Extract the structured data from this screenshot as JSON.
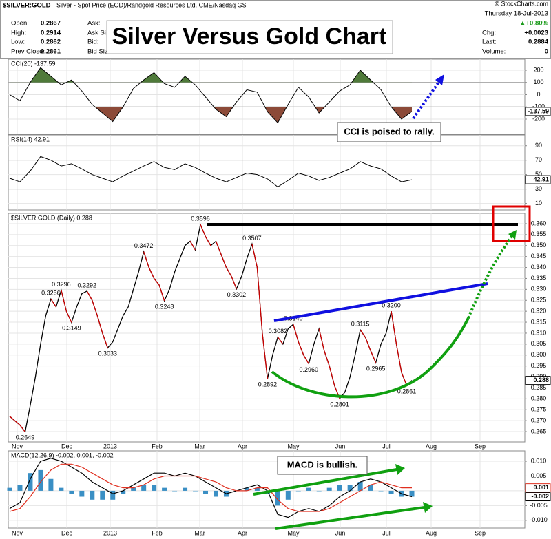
{
  "header": {
    "symbol": "$SILVER:GOLD",
    "description": "Silver - Spot Price (EOD)/Randgold Resources Ltd.  CME/Nasdaq GS",
    "source": "© StockCharts.com",
    "quote": [
      [
        "Open:",
        "0.2867"
      ],
      [
        "High:",
        "0.2914"
      ],
      [
        "Low:",
        "0.2862"
      ],
      [
        "Prev Close:",
        "0.2861"
      ]
    ],
    "book": [
      "Ask:",
      "Ask Si",
      "Bid:",
      "Bid Size"
    ],
    "date": "Thursday  18-Jul-2013",
    "change_pct": "▲+0.80%",
    "chg": [
      "Chg:",
      "+0.0023"
    ],
    "last": [
      "Last:",
      "0.2884"
    ],
    "volume": [
      "Volume:",
      "0"
    ]
  },
  "title": "Silver Versus Gold Chart",
  "annotations": [
    "CCI is poised to rally.",
    "MACD is bullish."
  ],
  "x_labels": [
    "Nov",
    "Dec",
    "2013",
    "Feb",
    "Mar",
    "Apr",
    "May",
    "Jun",
    "Jul",
    "Aug",
    "Sep"
  ],
  "chart_data": [
    {
      "type": "cci",
      "label": "CCI(20) -137.59",
      "color": "#000000",
      "upper_fill": "#4f7a3a",
      "lower_fill": "#8c4a38",
      "bands": [
        100,
        -100
      ],
      "ylim": [
        -324,
        290
      ],
      "yticks": [
        200,
        100,
        0,
        -100,
        -200
      ],
      "values": [
        0,
        -50,
        100,
        220,
        150,
        80,
        120,
        30,
        -80,
        -150,
        -220,
        -100,
        50,
        120,
        180,
        90,
        60,
        150,
        80,
        -20,
        -120,
        -180,
        -60,
        40,
        20,
        -140,
        -230,
        -80,
        60,
        -20,
        -150,
        -60,
        30,
        80,
        200,
        120,
        40,
        -100,
        -200,
        -137.59
      ]
    },
    {
      "type": "rsi",
      "label": "RSI(14) 42.91",
      "color": "#000000",
      "bands": [
        70,
        30
      ],
      "ylim": [
        1,
        105
      ],
      "yticks": [
        90,
        70,
        50,
        30,
        10
      ],
      "values": [
        45,
        40,
        55,
        75,
        70,
        62,
        65,
        58,
        50,
        45,
        40,
        48,
        55,
        62,
        68,
        60,
        57,
        65,
        60,
        52,
        45,
        40,
        46,
        52,
        50,
        44,
        33,
        42,
        52,
        48,
        42,
        46,
        52,
        58,
        68,
        62,
        58,
        48,
        40,
        42.91
      ]
    },
    {
      "type": "price",
      "label": "$SILVER:GOLD (Daily) 0.288",
      "last_label": "0.288",
      "up_color": "#000000",
      "down_color": "#cc0000",
      "grid": true,
      "ylim": [
        0.2603,
        0.3647
      ],
      "yticks": [
        {
          "value": 0.36,
          "label": "0.360"
        },
        {
          "value": 0.355,
          "label": "0.355"
        },
        {
          "value": 0.35,
          "label": "0.350"
        },
        {
          "value": 0.345,
          "label": "0.345"
        },
        {
          "value": 0.34,
          "label": "0.340"
        },
        {
          "value": 0.335,
          "label": "0.335"
        },
        {
          "value": 0.33,
          "label": "0.330"
        },
        {
          "value": 0.325,
          "label": "0.325"
        },
        {
          "value": 0.32,
          "label": "0.320"
        },
        {
          "value": 0.315,
          "label": "0.315"
        },
        {
          "value": 0.31,
          "label": "0.310"
        },
        {
          "value": 0.305,
          "label": "0.305"
        },
        {
          "value": 0.3,
          "label": "0.300"
        },
        {
          "value": 0.295,
          "label": "0.295"
        },
        {
          "value": 0.29,
          "label": "0.290"
        },
        {
          "value": 0.285,
          "label": "0.285"
        },
        {
          "value": 0.28,
          "label": "0.280"
        },
        {
          "value": 0.275,
          "label": "0.275"
        },
        {
          "value": 0.27,
          "label": "0.270"
        },
        {
          "value": 0.265,
          "label": "0.265"
        }
      ],
      "values": [
        0.272,
        0.27,
        0.268,
        0.2649,
        0.277,
        0.29,
        0.305,
        0.318,
        0.3256,
        0.322,
        0.3296,
        0.32,
        0.3149,
        0.322,
        0.328,
        0.3292,
        0.325,
        0.318,
        0.31,
        0.3033,
        0.306,
        0.312,
        0.318,
        0.322,
        0.33,
        0.338,
        0.3472,
        0.34,
        0.335,
        0.332,
        0.3248,
        0.33,
        0.338,
        0.344,
        0.35,
        0.352,
        0.348,
        0.3596,
        0.354,
        0.35,
        0.352,
        0.346,
        0.34,
        0.336,
        0.3302,
        0.336,
        0.344,
        0.3507,
        0.34,
        0.31,
        0.2892,
        0.3,
        0.3082,
        0.305,
        0.312,
        0.314,
        0.306,
        0.3,
        0.296,
        0.305,
        0.312,
        0.302,
        0.295,
        0.286,
        0.2801,
        0.283,
        0.29,
        0.3,
        0.3115,
        0.308,
        0.302,
        0.2965,
        0.305,
        0.31,
        0.32,
        0.305,
        0.292,
        0.2861,
        0.2884
      ],
      "value_labels": [
        null,
        null,
        null,
        "0.2649",
        null,
        null,
        null,
        null,
        "0.3256",
        null,
        "0.3296",
        null,
        "0.3149",
        null,
        null,
        "0.3292",
        null,
        null,
        null,
        "0.3033",
        null,
        null,
        null,
        null,
        null,
        null,
        "0.3472",
        null,
        null,
        null,
        "0.3248",
        null,
        null,
        null,
        null,
        null,
        null,
        "0.3596",
        null,
        null,
        null,
        null,
        null,
        null,
        "0.3302",
        null,
        null,
        "0.3507",
        null,
        null,
        "0.2892",
        null,
        "0.3082",
        null,
        null,
        "0.3140",
        null,
        null,
        "0.2960",
        null,
        null,
        null,
        null,
        null,
        "0.2801",
        null,
        null,
        null,
        "0.3115",
        null,
        null,
        "0.2965",
        null,
        null,
        "0.3200",
        null,
        null,
        "0.2861",
        null
      ]
    },
    {
      "type": "macd",
      "label": "MACD(12,26,9) -0.002, 0.001, -0.002",
      "ylim": [
        -0.0126,
        0.0135
      ],
      "yticks": [
        {
          "value": 0.01,
          "label": "0.010"
        },
        {
          "value": 0.005,
          "label": "0.005"
        },
        {
          "value": 0,
          "label": "0.000"
        },
        {
          "value": -0.005,
          "label": "-0.005"
        },
        {
          "value": -0.01,
          "label": "-0.010"
        }
      ],
      "series": [
        {
          "color": "#3a8fc4",
          "style": "histogram",
          "values": [
            0.001,
            0.002,
            0.006,
            0.007,
            0.004,
            0.001,
            -0.001,
            -0.002,
            -0.003,
            -0.003,
            -0.003,
            -0.001,
            0.001,
            0.002,
            0.002,
            0.001,
            0,
            0.001,
            0,
            -0.001,
            -0.002,
            -0.002,
            0,
            0.001,
            0.001,
            -0.001,
            -0.005,
            -0.003,
            0,
            0.001,
            0,
            0.001,
            0.002,
            0.002,
            0.003,
            0.002,
            0,
            -0.001,
            -0.002,
            -0.002
          ]
        },
        {
          "color": "#000000",
          "style": "line",
          "values": [
            -0.006,
            -0.004,
            0.004,
            0.01,
            0.011,
            0.01,
            0.008,
            0.006,
            0.003,
            0.001,
            -0.001,
            0,
            0.002,
            0.004,
            0.006,
            0.006,
            0.005,
            0.006,
            0.005,
            0.003,
            0.001,
            -0.001,
            0,
            0.001,
            0.002,
            0,
            -0.008,
            -0.009,
            -0.007,
            -0.006,
            -0.007,
            -0.005,
            -0.002,
            0,
            0.003,
            0.004,
            0.003,
            0.001,
            -0.001,
            -0.002
          ]
        },
        {
          "color": "#e03020",
          "style": "line",
          "values": [
            -0.007,
            -0.006,
            -0.002,
            0.003,
            0.007,
            0.009,
            0.009,
            0.008,
            0.006,
            0.004,
            0.002,
            0.001,
            0.001,
            0.002,
            0.004,
            0.005,
            0.005,
            0.005,
            0.005,
            0.004,
            0.003,
            0.001,
            0,
            0,
            0.001,
            0.001,
            -0.003,
            -0.006,
            -0.007,
            -0.007,
            -0.007,
            -0.006,
            -0.004,
            -0.002,
            0,
            0.002,
            0.003,
            0.002,
            0.001,
            0.001
          ]
        }
      ]
    }
  ]
}
